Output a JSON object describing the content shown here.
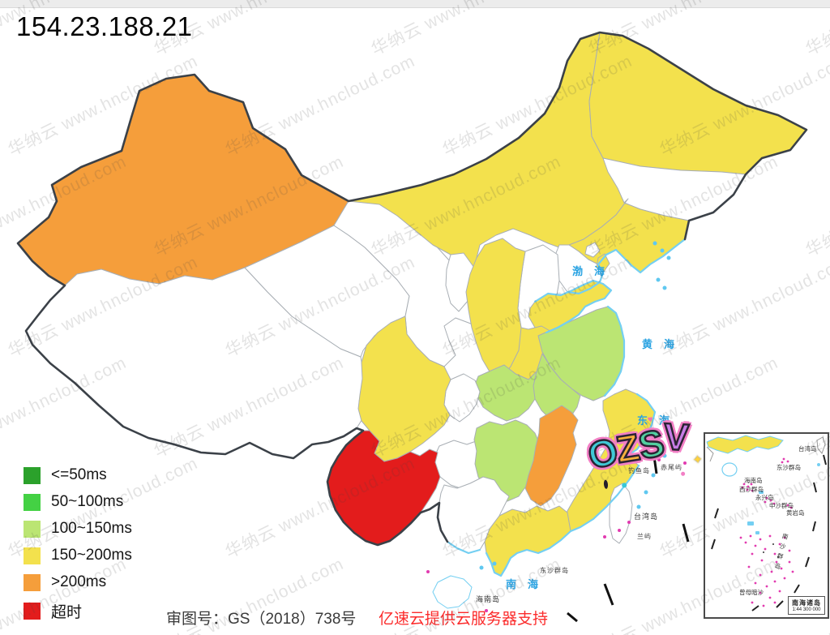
{
  "header": {
    "title": "154.23.188.21"
  },
  "legend": {
    "items": [
      {
        "label": "<=50ms",
        "color": "#2ba12b"
      },
      {
        "label": "50~100ms",
        "color": "#44d144"
      },
      {
        "label": "100~150ms",
        "color": "#bbe573"
      },
      {
        "label": "150~200ms",
        "color": "#f3e14d"
      },
      {
        "label": ">200ms",
        "color": "#f59e3b"
      },
      {
        "label": "超时",
        "color": "#e31c1c"
      }
    ]
  },
  "footer": {
    "map_license": "审图号：GS（2018）738号",
    "sponsor": "亿速云提供云服务器支持"
  },
  "watermark": {
    "text": "华纳云 www.hncloud.com"
  },
  "sticker": {
    "text": "OZSV",
    "letters": [
      {
        "char": "O",
        "color": "#3fc9d6"
      },
      {
        "char": "Z",
        "color": "#f6b03c"
      },
      {
        "char": "S",
        "color": "#52cfa0"
      },
      {
        "char": "V",
        "color": "#c77ce6"
      }
    ],
    "sparkle": "✦",
    "heart": "♥"
  },
  "map": {
    "category_colors": {
      "<=50ms": "#2ba12b",
      "50~100ms": "#44d144",
      "100~150ms": "#bbe573",
      "150~200ms": "#f3e14d",
      ">200ms": "#f59e3b",
      "超时": "#e31c1c",
      "no-data": "#ffffff"
    },
    "provinces": [
      {
        "id": "xinjiang",
        "name": "新疆",
        "category": ">200ms"
      },
      {
        "id": "xizang",
        "name": "西藏",
        "category": "no-data"
      },
      {
        "id": "qinghai",
        "name": "青海",
        "category": "no-data"
      },
      {
        "id": "gansu",
        "name": "甘肃",
        "category": "no-data"
      },
      {
        "id": "ningxia",
        "name": "宁夏",
        "category": "no-data"
      },
      {
        "id": "neimenggu",
        "name": "内蒙古",
        "category": "150~200ms"
      },
      {
        "id": "heilongjiang",
        "name": "黑龙江",
        "category": "150~200ms"
      },
      {
        "id": "jilin",
        "name": "吉林",
        "category": "no-data"
      },
      {
        "id": "liaoning",
        "name": "辽宁",
        "category": "150~200ms"
      },
      {
        "id": "beijing",
        "name": "北京",
        "category": "no-data"
      },
      {
        "id": "tianjin",
        "name": "天津",
        "category": "150~200ms"
      },
      {
        "id": "hebei",
        "name": "河北",
        "category": "no-data"
      },
      {
        "id": "shanxi",
        "name": "山西",
        "category": "no-data"
      },
      {
        "id": "shandong",
        "name": "山东",
        "category": "150~200ms"
      },
      {
        "id": "henan",
        "name": "河南",
        "category": "150~200ms"
      },
      {
        "id": "shaanxi",
        "name": "陕西",
        "category": "150~200ms"
      },
      {
        "id": "jiangsu",
        "name": "江苏",
        "category": "100~150ms"
      },
      {
        "id": "anhui",
        "name": "安徽",
        "category": "100~150ms"
      },
      {
        "id": "hubei",
        "name": "湖北",
        "category": "100~150ms"
      },
      {
        "id": "hunan",
        "name": "湖南",
        "category": "100~150ms"
      },
      {
        "id": "jiangxi",
        "name": "江西",
        "category": ">200ms"
      },
      {
        "id": "zhejiang",
        "name": "浙江",
        "category": "150~200ms"
      },
      {
        "id": "fujian",
        "name": "福建",
        "category": "150~200ms"
      },
      {
        "id": "sichuan",
        "name": "四川",
        "category": "150~200ms"
      },
      {
        "id": "chongqing",
        "name": "重庆",
        "category": "no-data"
      },
      {
        "id": "guizhou",
        "name": "贵州",
        "category": "no-data"
      },
      {
        "id": "yunnan",
        "name": "云南",
        "category": "超时"
      },
      {
        "id": "guangxi",
        "name": "广西",
        "category": "no-data"
      },
      {
        "id": "guangdong",
        "name": "广东",
        "category": "150~200ms"
      },
      {
        "id": "hainan",
        "name": "海南",
        "category": "no-data"
      },
      {
        "id": "taiwan",
        "name": "台湾",
        "category": "no-data"
      }
    ],
    "sea_labels": [
      {
        "text": "渤海"
      },
      {
        "text": "黄海"
      },
      {
        "text": "东海"
      },
      {
        "text": "南海"
      }
    ],
    "island_labels": [
      {
        "text": "台湾岛"
      },
      {
        "text": "兰屿"
      },
      {
        "text": "钓鱼岛"
      },
      {
        "text": "赤尾屿"
      },
      {
        "text": "东沙群岛"
      },
      {
        "text": "海南岛"
      }
    ],
    "inset": {
      "title": "南海诸岛",
      "scale": "1:44 300 000",
      "labels": [
        {
          "text": "台湾岛"
        },
        {
          "text": "东沙群岛"
        },
        {
          "text": "海南岛"
        },
        {
          "text": "西沙群岛"
        },
        {
          "text": "永兴岛"
        },
        {
          "text": "中沙群岛"
        },
        {
          "text": "黄岩岛"
        },
        {
          "text": "南沙群岛"
        },
        {
          "text": "曾母暗沙"
        }
      ]
    }
  }
}
